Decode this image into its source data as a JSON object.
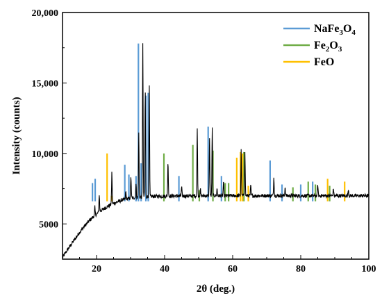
{
  "chart_data": {
    "type": "line",
    "title": "",
    "xlabel": "2θ (deg.)",
    "ylabel": "Intensity (counts)",
    "xlim": [
      10,
      100
    ],
    "ylim": [
      2500,
      20000
    ],
    "x_ticks": [
      20,
      40,
      60,
      80,
      100
    ],
    "y_ticks": [
      5000,
      10000,
      15000,
      20000
    ],
    "y_tick_labels": [
      "5000",
      "10,000",
      "15,000",
      "20,000"
    ],
    "grid": false,
    "legend_position": "top-right",
    "colors": {
      "pattern": "#000000",
      "NaFe3O4": "#5B9BD5",
      "Fe2O3": "#70AD47",
      "FeO": "#FFC000"
    },
    "series": [
      {
        "name": "NaFe3O4",
        "label_main": "NaFe",
        "label_parts": [
          [
            "NaFe",
            ""
          ],
          [
            "3",
            "sub"
          ],
          [
            "O",
            ""
          ],
          [
            "4",
            "sub"
          ]
        ],
        "kind": "reference-sticks",
        "color": "#5B9BD5",
        "x": [
          18.8,
          19.6,
          28.3,
          29.5,
          31.6,
          32.3,
          33.1,
          34.5,
          35.2,
          44.2,
          52.8,
          56.7,
          71.0,
          74.5,
          80.0,
          83.5
        ],
        "y": [
          7900,
          8200,
          9200,
          8500,
          8400,
          17800,
          9300,
          14100,
          14300,
          8400,
          11900,
          8400,
          9500,
          7800,
          7800,
          8000
        ]
      },
      {
        "name": "Fe2O3",
        "label_parts": [
          [
            "Fe",
            ""
          ],
          [
            "2",
            "sub"
          ],
          [
            "O",
            ""
          ],
          [
            "3",
            "sub"
          ]
        ],
        "kind": "reference-sticks",
        "color": "#70AD47",
        "x": [
          39.8,
          48.3,
          50.2,
          54.2,
          57.8,
          58.8,
          63.3,
          77.7,
          82.2,
          84.3,
          88.5
        ],
        "y": [
          10000,
          10600,
          7400,
          10200,
          7900,
          7900,
          10100,
          7600,
          8000,
          7800,
          7700
        ]
      },
      {
        "name": "FeO",
        "label_parts": [
          [
            "FeO",
            ""
          ]
        ],
        "kind": "reference-sticks",
        "color": "#FFC000",
        "x": [
          23.1,
          24.4,
          61.2,
          62.3,
          62.9,
          64.6,
          87.9,
          92.9
        ],
        "y": [
          10000,
          7000,
          9700,
          10100,
          10000,
          7700,
          8200,
          8000
        ]
      }
    ],
    "pattern": {
      "name": "",
      "color": "#000000",
      "baseline_points": [
        [
          10,
          2600
        ],
        [
          11,
          3000
        ],
        [
          12,
          3350
        ],
        [
          13,
          3700
        ],
        [
          14,
          4050
        ],
        [
          15,
          4400
        ],
        [
          16,
          4700
        ],
        [
          17,
          5000
        ],
        [
          18,
          5250
        ],
        [
          19,
          5500
        ],
        [
          20,
          5700
        ],
        [
          21,
          5900
        ],
        [
          22,
          6050
        ],
        [
          23,
          6200
        ],
        [
          24,
          6350
        ],
        [
          25,
          6450
        ],
        [
          26,
          6550
        ],
        [
          27,
          6650
        ],
        [
          28,
          6720
        ],
        [
          29,
          6780
        ],
        [
          30,
          6830
        ],
        [
          32,
          6880
        ],
        [
          34,
          6920
        ],
        [
          36,
          6950
        ],
        [
          40,
          6970
        ],
        [
          50,
          6990
        ],
        [
          60,
          7000
        ],
        [
          70,
          7000
        ],
        [
          80,
          7000
        ],
        [
          90,
          7000
        ],
        [
          100,
          7000
        ]
      ],
      "peaks": [
        [
          19.5,
          6200
        ],
        [
          20.8,
          7100
        ],
        [
          24.5,
          8700
        ],
        [
          28.6,
          7300
        ],
        [
          30.1,
          8400
        ],
        [
          31.6,
          7800
        ],
        [
          32.4,
          11400
        ],
        [
          33.6,
          17900
        ],
        [
          34.3,
          14500
        ],
        [
          35.5,
          15000
        ],
        [
          41.0,
          9400
        ],
        [
          45.0,
          7600
        ],
        [
          49.6,
          11700
        ],
        [
          50.5,
          7500
        ],
        [
          53.2,
          11000
        ],
        [
          54.0,
          11800
        ],
        [
          55.4,
          7500
        ],
        [
          57.3,
          8000
        ],
        [
          62.5,
          10300
        ],
        [
          63.6,
          10200
        ],
        [
          65.3,
          7700
        ],
        [
          72.1,
          8300
        ],
        [
          75.4,
          7600
        ],
        [
          85.0,
          7800
        ],
        [
          89.6,
          7500
        ],
        [
          94.0,
          7500
        ]
      ]
    }
  }
}
